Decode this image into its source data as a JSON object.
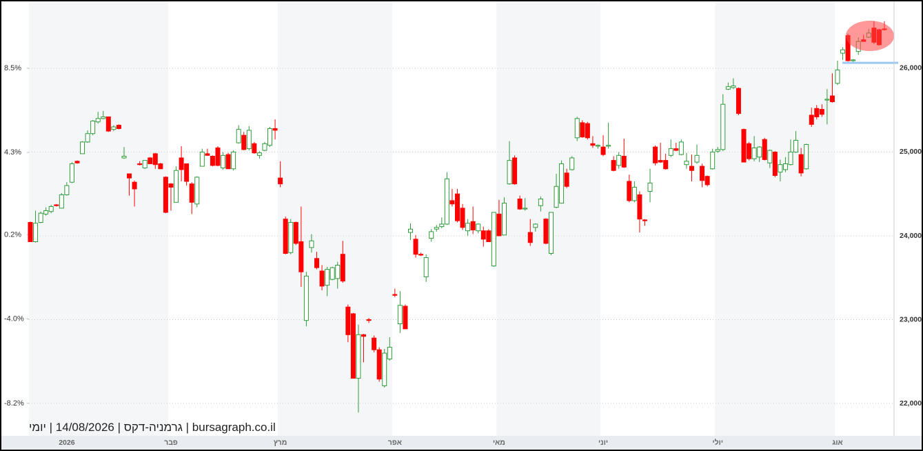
{
  "chart_data": {
    "type": "candlestick",
    "watermark": "bursagraph.co.il | גרמניה-דקס | 14/08/2026 | יומי",
    "up_color": "#2e9a3a",
    "down_color": "#ff0000",
    "reference_line": 26065,
    "reference_line_color": "#9cc9f2",
    "grid": true,
    "ylim": [
      21613,
      26798
    ],
    "yticks": [
      {
        "value": 22000,
        "label": "22,000"
      },
      {
        "value": 23000,
        "label": "23,000"
      },
      {
        "value": 24000,
        "label": "24,000"
      },
      {
        "value": 25000,
        "label": "25,000"
      },
      {
        "value": 26000,
        "label": "26,000"
      }
    ],
    "y2lim": [
      -9.82,
      11.83
    ],
    "y2ticks": [
      {
        "value": -8.2,
        "label": "-8.2%"
      },
      {
        "value": -4.0,
        "label": "-4.0%"
      },
      {
        "value": 0.2,
        "label": "0.2%"
      },
      {
        "value": 4.3,
        "label": "4.3%"
      },
      {
        "value": 8.5,
        "label": "8.5%"
      }
    ],
    "categories": [
      null,
      null,
      null,
      null,
      null,
      null,
      null,
      "2026",
      null,
      null,
      null,
      null,
      null,
      null,
      null,
      null,
      null,
      null,
      null,
      null,
      null,
      null,
      null,
      null,
      null,
      null,
      null,
      "פבר",
      null,
      null,
      null,
      null,
      null,
      null,
      null,
      null,
      null,
      null,
      null,
      null,
      null,
      null,
      null,
      null,
      null,
      null,
      null,
      null,
      "מרץ",
      null,
      null,
      null,
      null,
      null,
      null,
      null,
      null,
      null,
      null,
      null,
      null,
      null,
      null,
      null,
      null,
      null,
      null,
      null,
      null,
      null,
      "אפר",
      null,
      null,
      null,
      null,
      null,
      null,
      null,
      null,
      null,
      null,
      null,
      null,
      null,
      null,
      null,
      null,
      null,
      null,
      null,
      "מאי",
      null,
      null,
      null,
      null,
      null,
      null,
      null,
      null,
      null,
      null,
      null,
      null,
      null,
      null,
      null,
      null,
      null,
      null,
      null,
      "יוני",
      null,
      null,
      null,
      null,
      null,
      null,
      null,
      null,
      null,
      null,
      null,
      null,
      null,
      null,
      null,
      null,
      null,
      null,
      null,
      null,
      null,
      "יולי",
      null,
      null,
      null,
      null,
      null,
      null,
      null,
      null,
      null,
      null,
      null,
      null,
      null,
      null,
      null,
      null,
      null,
      null,
      null,
      null,
      null,
      null,
      "אוג",
      null,
      null,
      null,
      null,
      null,
      null,
      null,
      null,
      null
    ],
    "ohlc": {
      "open": [
        24160,
        23930,
        24160,
        24260,
        24290,
        24370,
        24330,
        24490,
        24640,
        24890,
        24980,
        25120,
        25220,
        25360,
        25400,
        25420,
        25270,
        25320,
        24930,
        24740,
        24640,
        24860,
        24810,
        24930,
        24980,
        24860,
        24700,
        24620,
        24400,
        24930,
        24860,
        24620,
        24380,
        24830,
        24980,
        24950,
        25050,
        24810,
        24970,
        24800,
        25110,
        25200,
        25040,
        25100,
        24960,
        25020,
        25080,
        25280,
        24690,
        24200,
        23800,
        24160,
        23930,
        22990,
        23860,
        23730,
        23580,
        23410,
        23480,
        23490,
        23780,
        23150,
        23070,
        22300,
        22820,
        23000,
        22780,
        22640,
        22210,
        22530,
        23300,
        22950,
        23160,
        24040,
        23960,
        23780,
        23510,
        23970,
        24080,
        24110,
        24140,
        24420,
        24500,
        24330,
        24060,
        24170,
        24060,
        24060,
        24060,
        23640,
        24260,
        24010,
        24620,
        24930,
        24440,
        24320,
        24040,
        24100,
        24360,
        24200,
        23790,
        24340,
        24390,
        24750,
        24790,
        25170,
        25350,
        25340,
        25100,
        25070,
        25060,
        25070,
        24900,
        24840,
        24950,
        24650,
        24420,
        24490,
        24190,
        24530,
        25060,
        24900,
        24900,
        24960,
        25040,
        24970,
        24850,
        24830,
        24880,
        24830,
        24710,
        24800,
        25010,
        25030,
        25750,
        25770,
        25760,
        25270,
        25100,
        24920,
        24940,
        25150,
        24870,
        25000,
        24760,
        24790,
        24850,
        25000,
        24970,
        24800,
        25440,
        25520,
        25510,
        25620,
        25670,
        25820,
        26180,
        26390,
        26090,
        26200,
        26340,
        26370,
        26480,
        26460,
        26470
      ],
      "high": [
        24170,
        24300,
        24290,
        24340,
        24370,
        24380,
        24510,
        24640,
        24880,
        24900,
        25130,
        25260,
        25380,
        25480,
        25490,
        25420,
        25320,
        25330,
        25060,
        24740,
        24660,
        24890,
        24900,
        24940,
        24990,
        24870,
        24710,
        24630,
        24830,
        25070,
        24860,
        24640,
        24710,
        25040,
        25040,
        24960,
        25070,
        25000,
        24990,
        25020,
        25320,
        25240,
        25310,
        25120,
        25010,
        25120,
        25300,
        25390,
        24890,
        24230,
        24200,
        24170,
        24350,
        23570,
        24020,
        23810,
        23650,
        23630,
        23630,
        23690,
        23940,
        23180,
        23080,
        22940,
        22830,
        23020,
        22810,
        22670,
        22650,
        22790,
        23370,
        23340,
        23180,
        24150,
        24010,
        23800,
        23780,
        24080,
        24130,
        24220,
        24760,
        24560,
        24560,
        24380,
        24200,
        24350,
        24150,
        24110,
        24080,
        24280,
        24430,
        24460,
        25130,
        24960,
        24480,
        24450,
        24200,
        24150,
        24470,
        24210,
        24280,
        24740,
        24900,
        24800,
        24950,
        25420,
        25380,
        25360,
        25190,
        25090,
        25200,
        25350,
        24950,
        25000,
        25160,
        24730,
        24650,
        24530,
        24200,
        24800,
        25080,
        25110,
        24980,
        25150,
        25110,
        25150,
        24990,
        24970,
        25090,
        24860,
        24720,
        25040,
        25060,
        25690,
        25830,
        25880,
        25770,
        25280,
        25120,
        25190,
        25070,
        25170,
        25030,
        25010,
        24910,
        24940,
        25150,
        25250,
        25050,
        25100,
        25530,
        25560,
        25570,
        25750,
        25940,
        26090,
        26250,
        26410,
        26110,
        26370,
        26400,
        26470,
        26560,
        26470,
        26560
      ],
      "low": [
        23930,
        23920,
        24150,
        24240,
        24270,
        24350,
        24330,
        24480,
        24630,
        24860,
        24980,
        25110,
        25200,
        25340,
        25390,
        25240,
        25250,
        25270,
        24920,
        24480,
        24350,
        24840,
        24800,
        24860,
        24800,
        24800,
        24270,
        24300,
        24400,
        24650,
        24600,
        24260,
        24340,
        24830,
        24960,
        24830,
        24830,
        24790,
        24800,
        24780,
        25100,
        25020,
        25020,
        24980,
        24920,
        25010,
        25060,
        25150,
        24580,
        23780,
        23780,
        23890,
        23390,
        22920,
        23800,
        23600,
        23350,
        23280,
        23470,
        23370,
        23440,
        22730,
        22300,
        21890,
        22490,
        22960,
        22610,
        22260,
        22190,
        22510,
        23270,
        22840,
        22890,
        23950,
        23740,
        23760,
        23450,
        23930,
        24050,
        24090,
        24130,
        24350,
        24160,
        24070,
        24000,
        24020,
        24030,
        23870,
        23930,
        23630,
        24000,
        24010,
        24610,
        24610,
        24310,
        24300,
        23880,
        24050,
        24290,
        23900,
        23770,
        24330,
        24390,
        24570,
        24780,
        25130,
        25170,
        25150,
        25050,
        25040,
        24950,
        25040,
        24770,
        24800,
        24810,
        24400,
        24400,
        24040,
        24120,
        24400,
        24840,
        24870,
        24790,
        24940,
        25010,
        24960,
        24800,
        24650,
        24860,
        24580,
        24590,
        24790,
        24990,
        25010,
        25740,
        25750,
        25440,
        24880,
        24900,
        24890,
        24880,
        24900,
        24810,
        24700,
        24650,
        24760,
        24840,
        24990,
        24710,
        24790,
        25300,
        25390,
        25420,
        25330,
        25590,
        25800,
        26100,
        26080,
        26060,
        26160,
        26320,
        26360,
        26290,
        26270,
        26450
      ],
      "close": [
        23930,
        24150,
        24270,
        24300,
        24350,
        24360,
        24490,
        24600,
        24860,
        24870,
        25120,
        25220,
        25370,
        25400,
        25420,
        25250,
        25300,
        25280,
        24950,
        24690,
        24560,
        24850,
        24900,
        24860,
        24850,
        24800,
        24280,
        24580,
        24780,
        24790,
        24650,
        24400,
        24700,
        25000,
        24960,
        24840,
        24840,
        24960,
        24800,
        25000,
        25270,
        25030,
        25260,
        24990,
        24990,
        25100,
        25280,
        25260,
        24620,
        23790,
        24160,
        23910,
        23570,
        23520,
        23940,
        23620,
        23400,
        23600,
        23620,
        23650,
        23460,
        22820,
        22300,
        22820,
        22800,
        22990,
        22640,
        22290,
        22600,
        22670,
        23290,
        23170,
        22890,
        24080,
        23780,
        23770,
        23740,
        24050,
        24100,
        24140,
        24680,
        24380,
        24180,
        24100,
        24150,
        24070,
        24140,
        23960,
        23930,
        24280,
        24000,
        24390,
        24900,
        24620,
        24320,
        24330,
        23920,
        24140,
        24440,
        23910,
        24280,
        24590,
        24860,
        24590,
        24930,
        25400,
        25180,
        25170,
        25080,
        25080,
        24970,
        25080,
        24780,
        24960,
        24820,
        24420,
        24580,
        24200,
        24180,
        24630,
        24870,
        24880,
        24800,
        25040,
        25020,
        25120,
        24890,
        24780,
        24960,
        24660,
        24610,
        25000,
        25030,
        25570,
        25780,
        25790,
        25460,
        24880,
        24920,
        25050,
        25060,
        24910,
        25020,
        24720,
        24850,
        24860,
        25000,
        25140,
        24750,
        25090,
        25330,
        25420,
        25450,
        25630,
        25600,
        25980,
        26220,
        26090,
        26100,
        26320,
        26320,
        26420,
        26310,
        26280,
        26460
      ]
    }
  }
}
